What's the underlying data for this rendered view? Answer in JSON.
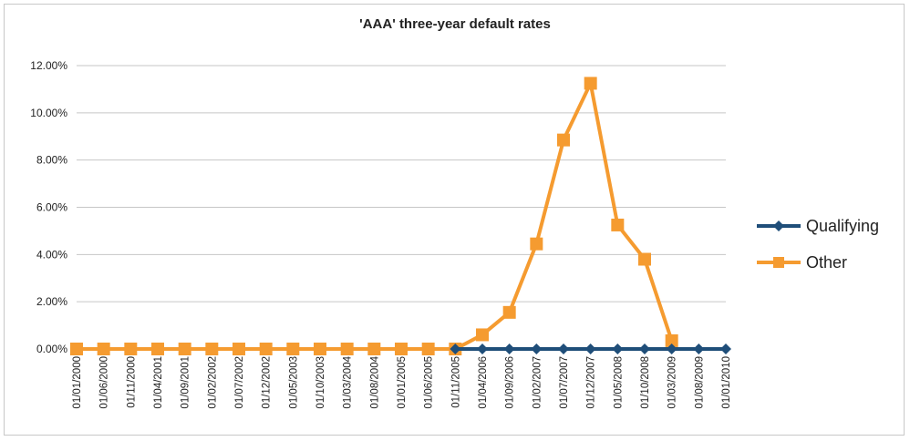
{
  "chart_data": {
    "type": "line",
    "title": "'AAA' three-year default rates",
    "xlabel": "",
    "ylabel": "",
    "ylim": [
      0,
      12
    ],
    "yticks": [
      "0.00%",
      "2.00%",
      "4.00%",
      "6.00%",
      "8.00%",
      "10.00%",
      "12.00%"
    ],
    "ytick_values": [
      0,
      2,
      4,
      6,
      8,
      10,
      12
    ],
    "grid": true,
    "legend_position": "right",
    "x": [
      "01/01/2000",
      "01/06/2000",
      "01/11/2000",
      "01/04/2001",
      "01/09/2001",
      "01/02/2002",
      "01/07/2002",
      "01/12/2002",
      "01/05/2003",
      "01/10/2003",
      "01/03/2004",
      "01/08/2004",
      "01/01/2005",
      "01/06/2005",
      "01/11/2005",
      "01/04/2006",
      "01/09/2006",
      "01/02/2007",
      "01/07/2007",
      "01/12/2007",
      "01/05/2008",
      "01/10/2008",
      "01/03/2009",
      "01/08/2009",
      "01/01/2010"
    ],
    "series": [
      {
        "name": "Qualifying",
        "color": "#1f4e79",
        "marker": "diamond",
        "values": [
          null,
          null,
          null,
          null,
          null,
          null,
          null,
          null,
          null,
          null,
          null,
          null,
          null,
          null,
          0,
          0,
          0,
          0,
          0,
          0,
          0,
          0,
          0,
          0,
          0
        ]
      },
      {
        "name": "Other",
        "color": "#f59b30",
        "marker": "square",
        "values": [
          0,
          0,
          0,
          0,
          0,
          0,
          0,
          0,
          0,
          0,
          0,
          0,
          0,
          0,
          0,
          0.6,
          1.55,
          4.45,
          8.85,
          11.25,
          5.25,
          3.8,
          0.35,
          null,
          null
        ]
      }
    ]
  }
}
